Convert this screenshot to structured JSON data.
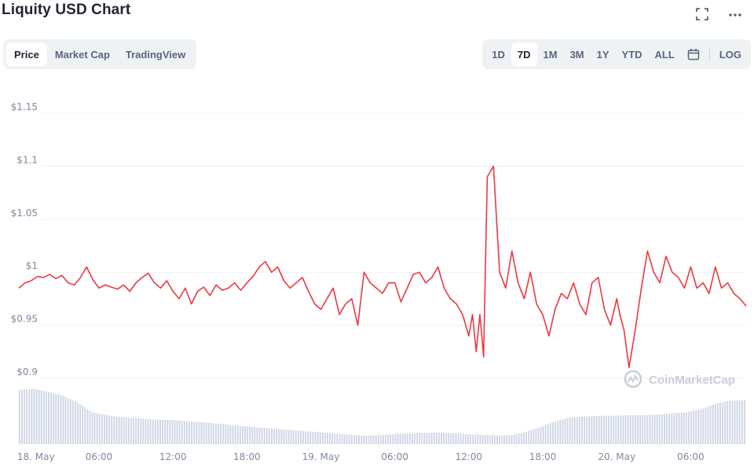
{
  "header": {
    "title": "Liquity USD Chart",
    "fullscreen_icon": "fullscreen-icon",
    "more_icon": "more-horizontal-icon"
  },
  "tabs": [
    {
      "label": "Price",
      "active": true
    },
    {
      "label": "Market Cap",
      "active": false
    },
    {
      "label": "TradingView",
      "active": false
    }
  ],
  "ranges": [
    {
      "label": "1D",
      "active": false
    },
    {
      "label": "7D",
      "active": true
    },
    {
      "label": "1M",
      "active": false
    },
    {
      "label": "3M",
      "active": false
    },
    {
      "label": "1Y",
      "active": false
    },
    {
      "label": "YTD",
      "active": false
    },
    {
      "label": "ALL",
      "active": false
    }
  ],
  "calendar_icon": "calendar-icon",
  "log_label": "LOG",
  "watermark": "CoinMarketCap",
  "colors": {
    "line": "#ea3943",
    "volume": "#cfd6e4",
    "grid": "#eef0f3",
    "axis_text": "#808a9d"
  },
  "chart_data": {
    "type": "line",
    "title": "Liquity USD Chart",
    "ylim": [
      0.9,
      1.15
    ],
    "y_ticks": [
      "$0.9",
      "$0.95",
      "$1",
      "$1.05",
      "$1.1",
      "$1.15"
    ],
    "y_tick_values": [
      0.9,
      0.95,
      1.0,
      1.05,
      1.1,
      1.15
    ],
    "x_ticks": [
      "18. May",
      "06:00",
      "12:00",
      "18:00",
      "19. May",
      "06:00",
      "12:00",
      "18:00",
      "20. May",
      "06:00"
    ],
    "x_tick_hours": [
      0,
      6,
      12,
      18,
      24,
      30,
      36,
      42,
      48,
      54
    ],
    "x_range_hours": [
      -0.5,
      58.5
    ],
    "grid": true,
    "series": [
      {
        "x_hours": [
          -0.5,
          0,
          0.5,
          1,
          1.5,
          2,
          2.5,
          3,
          3.5,
          4,
          4.5,
          5,
          5.5,
          6,
          6.5,
          7,
          7.5,
          8,
          8.5,
          9,
          9.5,
          10,
          10.5,
          11,
          11.5,
          12,
          12.5,
          13,
          13.5,
          14,
          14.5,
          15,
          15.5,
          16,
          16.5,
          17,
          17.5,
          18,
          18.5,
          19,
          19.5,
          20,
          20.5,
          21,
          21.5,
          22,
          22.5,
          23,
          23.5,
          24,
          24.5,
          25,
          25.5,
          26,
          26.5,
          27,
          27.5,
          28,
          28.5,
          29,
          29.5,
          30,
          30.5,
          31,
          31.5,
          32,
          32.5,
          33,
          33.5,
          34,
          34.5,
          35,
          35.5,
          36,
          36.3,
          36.6,
          36.9,
          37.2,
          37.5,
          38,
          38.5,
          39,
          39.5,
          40,
          40.5,
          41,
          41.5,
          42,
          42.5,
          43,
          43.5,
          44,
          44.5,
          45,
          45.5,
          46,
          46.5,
          47,
          47.5,
          48,
          48.3,
          48.6,
          49,
          49.5,
          50,
          50.5,
          51,
          51.5,
          52,
          52.5,
          53,
          53.5,
          54,
          54.5,
          55,
          55.5,
          56,
          56.5,
          57,
          57.5,
          58,
          58.5
        ],
        "values": [
          0.985,
          0.99,
          0.992,
          0.996,
          0.995,
          0.998,
          0.994,
          0.997,
          0.99,
          0.988,
          0.995,
          1.005,
          0.993,
          0.985,
          0.988,
          0.986,
          0.984,
          0.988,
          0.982,
          0.99,
          0.995,
          0.999,
          0.99,
          0.985,
          0.992,
          0.982,
          0.975,
          0.985,
          0.97,
          0.982,
          0.986,
          0.978,
          0.988,
          0.983,
          0.985,
          0.99,
          0.983,
          0.99,
          0.996,
          1.005,
          1.01,
          1.0,
          1.005,
          0.992,
          0.985,
          0.99,
          0.995,
          0.982,
          0.97,
          0.965,
          0.975,
          0.985,
          0.96,
          0.97,
          0.975,
          0.95,
          1.0,
          0.99,
          0.985,
          0.98,
          0.99,
          0.99,
          0.972,
          0.985,
          0.998,
          1.0,
          0.99,
          0.995,
          1.005,
          0.985,
          0.975,
          0.97,
          0.96,
          0.94,
          0.96,
          0.925,
          0.96,
          0.92,
          1.09,
          1.1,
          1.0,
          0.985,
          1.02,
          0.99,
          0.975,
          1.0,
          0.97,
          0.96,
          0.94,
          0.965,
          0.98,
          0.975,
          0.99,
          0.97,
          0.96,
          0.99,
          0.995,
          0.965,
          0.95,
          0.975,
          0.958,
          0.945,
          0.91,
          0.945,
          0.985,
          1.02,
          1.0,
          0.99,
          1.015,
          1.0,
          0.995,
          0.985,
          1.005,
          0.985,
          0.99,
          0.98,
          1.005,
          0.985,
          0.99,
          0.98,
          0.975,
          0.968
        ]
      }
    ],
    "volume": {
      "x_hours_start": -0.5,
      "x_hours_end": 58.5,
      "levels": [
        0.93,
        0.95,
        0.9,
        0.83,
        0.72,
        0.55,
        0.5,
        0.47,
        0.45,
        0.43,
        0.42,
        0.41,
        0.39,
        0.37,
        0.35,
        0.32,
        0.3,
        0.28,
        0.26,
        0.24,
        0.22,
        0.2,
        0.18,
        0.16,
        0.15,
        0.16,
        0.18,
        0.19,
        0.2,
        0.2,
        0.19,
        0.17,
        0.16,
        0.15,
        0.16,
        0.22,
        0.3,
        0.4,
        0.46,
        0.48,
        0.49,
        0.49,
        0.5,
        0.5,
        0.51,
        0.53,
        0.55,
        0.6,
        0.7,
        0.75,
        0.76
      ]
    }
  }
}
